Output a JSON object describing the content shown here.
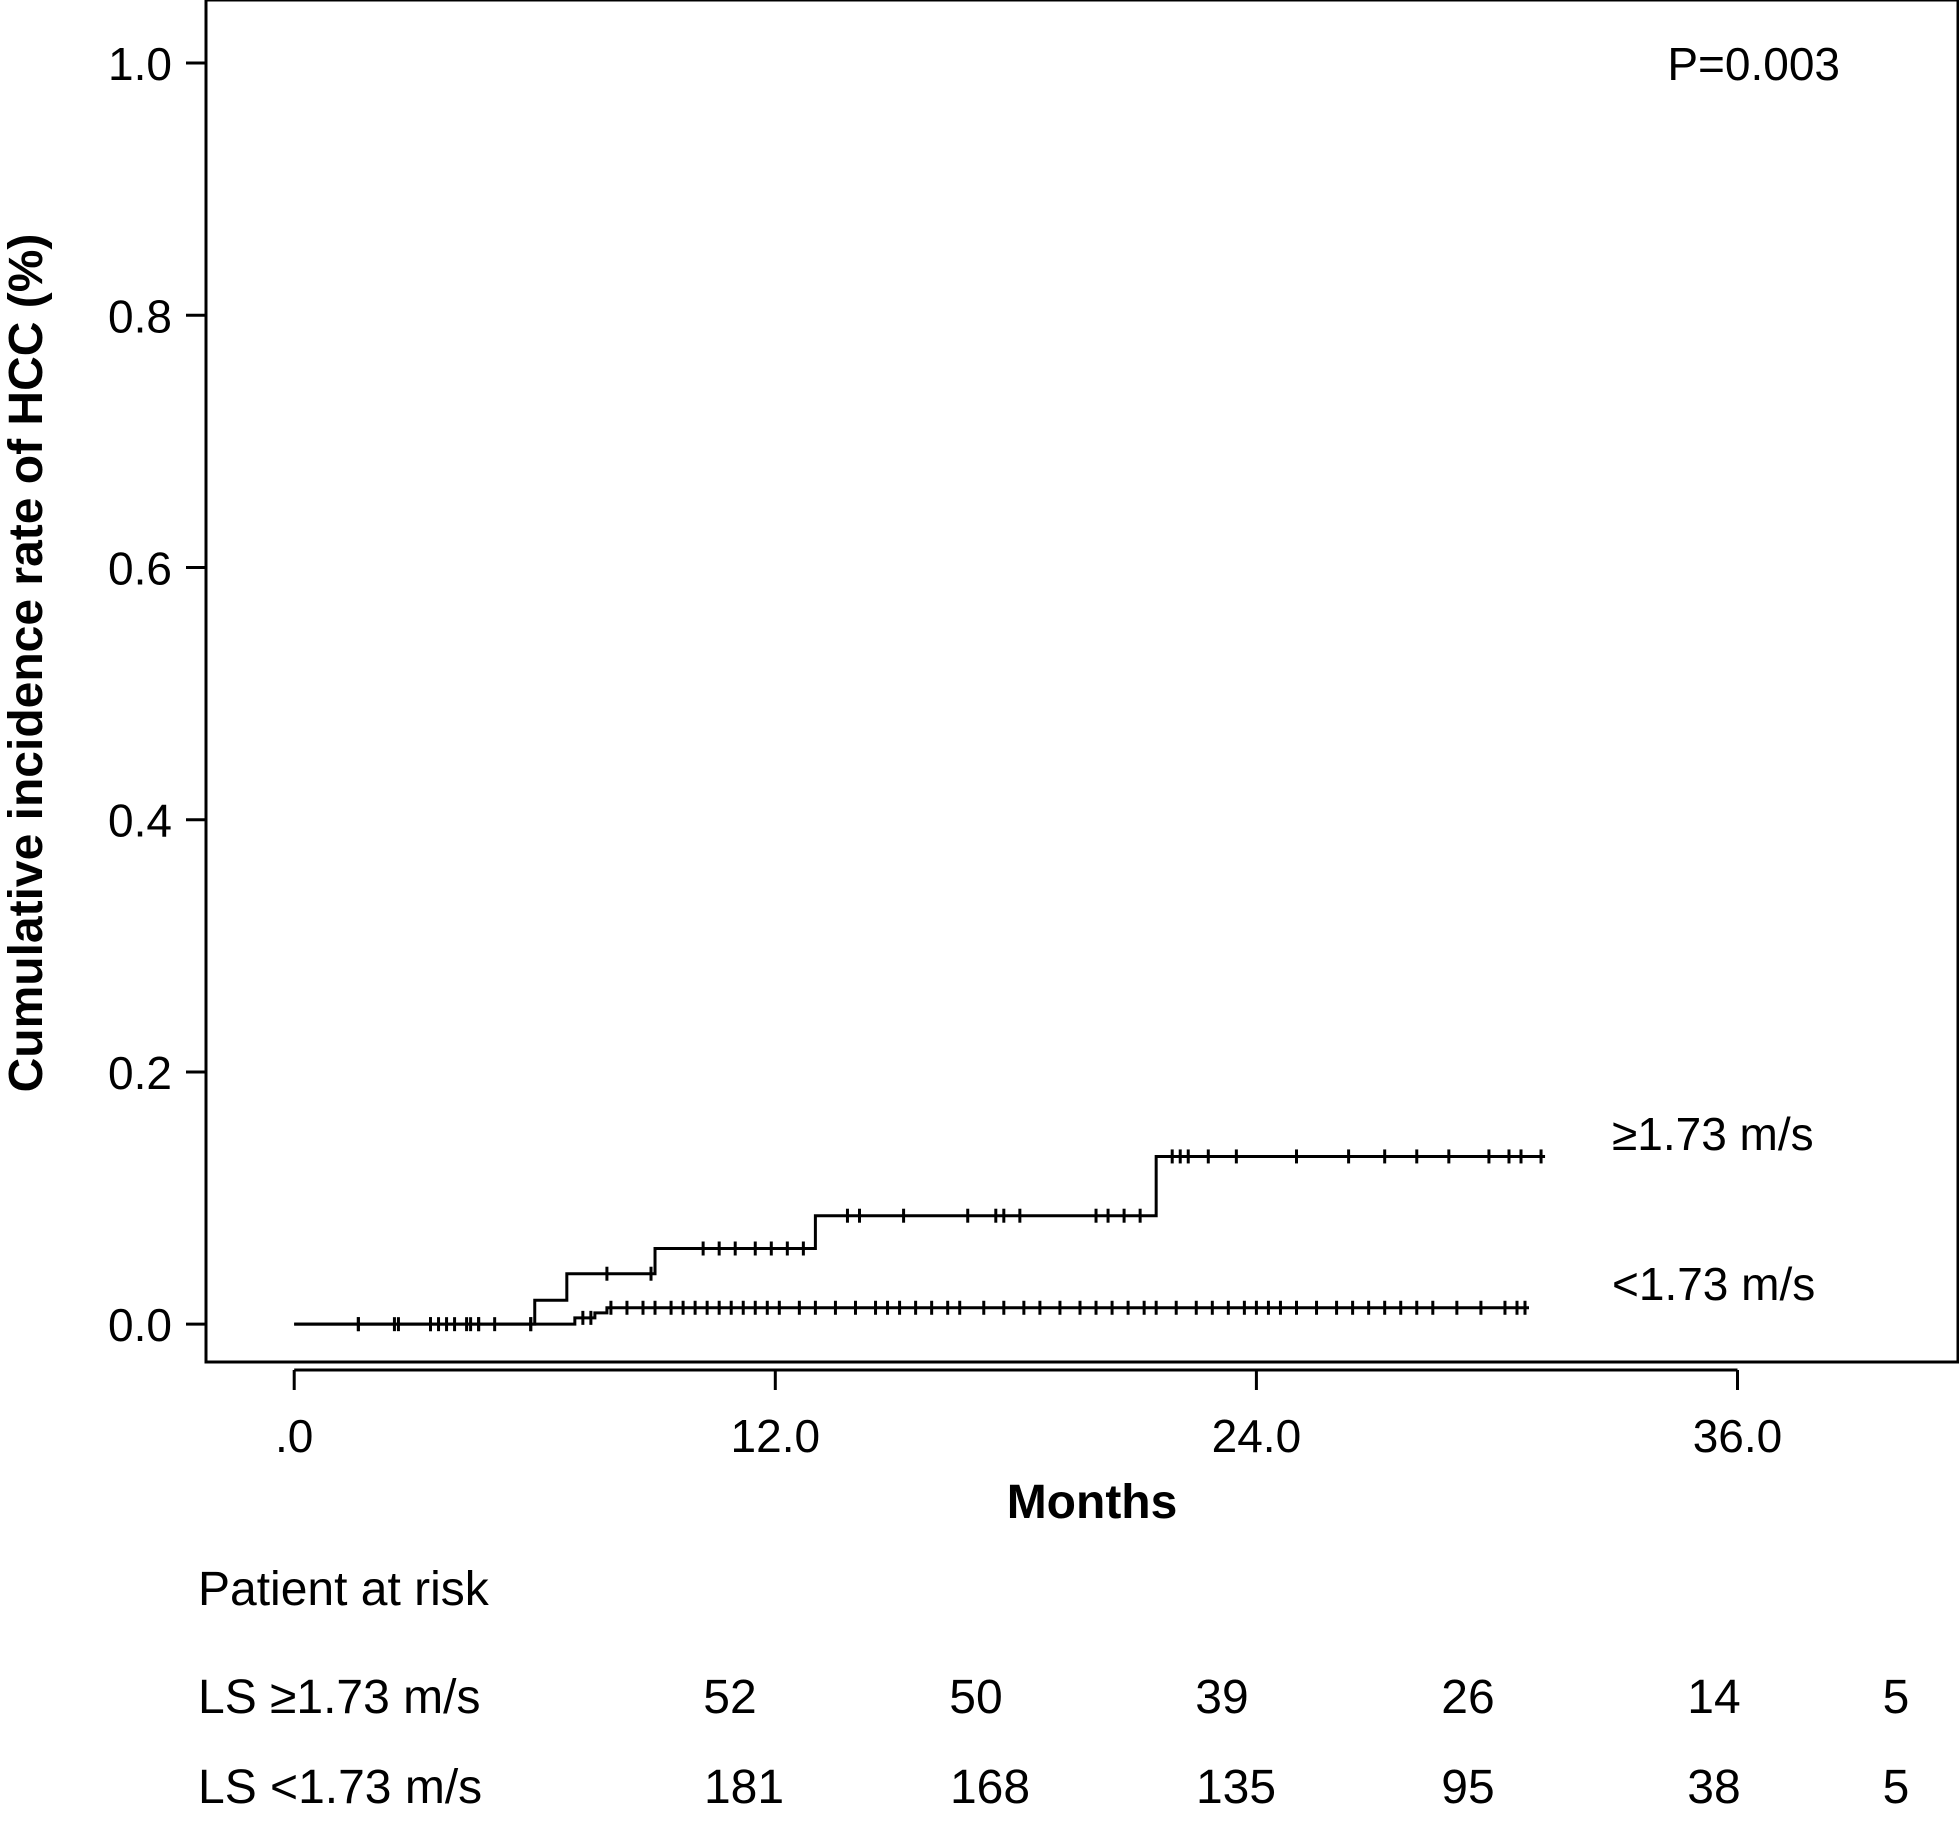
{
  "chart_data": {
    "type": "line",
    "subtype": "kaplan-meier-cumulative-incidence",
    "title": "",
    "xlabel": "Months",
    "ylabel": "Cumulative incidence rate of HCC (%)",
    "xlim": [
      -2.2,
      41.5
    ],
    "ylim": [
      -0.03,
      1.05
    ],
    "x_ticks": [
      0,
      12,
      24,
      36
    ],
    "x_tick_labels": [
      ".0",
      "12.0",
      "24.0",
      "36.0"
    ],
    "y_ticks": [
      0.0,
      0.2,
      0.4,
      0.6,
      0.8,
      1.0
    ],
    "y_tick_labels": [
      "0.0",
      "0.2",
      "0.4",
      "0.6",
      "0.8",
      "1.0"
    ],
    "grid": false,
    "annotation": "P=0.003",
    "series": [
      {
        "name": "≥1.73 m/s",
        "steps": [
          [
            0,
            0.0
          ],
          [
            6.0,
            0.019
          ],
          [
            6.8,
            0.04
          ],
          [
            9.0,
            0.06
          ],
          [
            13.0,
            0.086
          ],
          [
            21.5,
            0.133
          ],
          [
            31.2,
            0.133
          ]
        ],
        "censored_x": [
          1.6,
          2.5,
          3.4,
          3.8,
          4.3,
          4.6,
          5.9,
          7.8,
          8.9,
          10.2,
          10.6,
          11.0,
          11.5,
          11.9,
          12.3,
          12.7,
          13.8,
          14.1,
          15.2,
          16.8,
          17.5,
          17.7,
          18.1,
          20.0,
          20.3,
          20.7,
          21.1,
          21.9,
          22.1,
          22.3,
          22.8,
          23.5,
          25.0,
          26.3,
          27.2,
          28.0,
          28.8,
          29.8,
          30.3,
          30.6,
          31.1
        ]
      },
      {
        "name": "<1.73 m/s",
        "steps": [
          [
            0,
            0.0
          ],
          [
            7.0,
            0.005
          ],
          [
            7.5,
            0.009
          ],
          [
            7.8,
            0.013
          ],
          [
            30.8,
            0.013
          ]
        ],
        "censored_x": [
          1.6,
          2.6,
          3.4,
          3.6,
          4.0,
          4.4,
          4.6,
          5.0,
          5.9,
          7.2,
          7.4,
          7.9,
          8.3,
          8.7,
          9.0,
          9.4,
          9.7,
          10.0,
          10.3,
          10.6,
          10.9,
          11.2,
          11.5,
          11.8,
          12.1,
          12.6,
          13.0,
          13.5,
          14.0,
          14.5,
          14.8,
          15.1,
          15.5,
          15.9,
          16.3,
          16.6,
          17.2,
          17.7,
          18.2,
          18.6,
          19.1,
          19.6,
          20.0,
          20.4,
          20.8,
          21.2,
          21.5,
          22.0,
          22.5,
          22.9,
          23.3,
          23.7,
          24.0,
          24.3,
          24.6,
          25.0,
          25.5,
          26.0,
          26.4,
          26.8,
          27.2,
          27.6,
          28.0,
          28.4,
          29.0,
          29.6,
          30.2,
          30.5,
          30.7
        ]
      }
    ]
  },
  "risk_table": {
    "title": "Patient at risk",
    "rows": [
      {
        "label": "LS ≥1.73 m/s",
        "values": [
          "52",
          "50",
          "39",
          "26",
          "14",
          "5"
        ]
      },
      {
        "label": "LS <1.73 m/s",
        "values": [
          "181",
          "168",
          "135",
          "95",
          "38",
          "5"
        ]
      }
    ]
  }
}
